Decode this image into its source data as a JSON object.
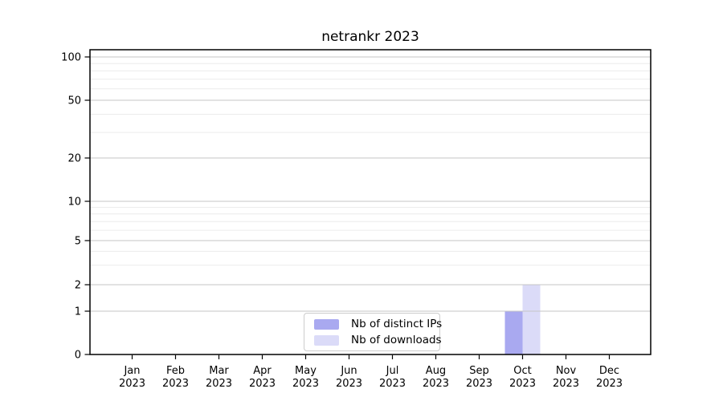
{
  "title": "netrankr 2023",
  "chart_data": {
    "type": "bar",
    "title": "netrankr 2023",
    "x_categories": [
      "Jan",
      "Feb",
      "Mar",
      "Apr",
      "May",
      "Jun",
      "Jul",
      "Aug",
      "Sep",
      "Oct",
      "Nov",
      "Dec"
    ],
    "x_year_label": "2023",
    "series": [
      {
        "name": "Nb of distinct IPs",
        "color": "#a9a9f0",
        "values": [
          0,
          0,
          0,
          0,
          0,
          0,
          0,
          0,
          0,
          1,
          0,
          0
        ]
      },
      {
        "name": "Nb of downloads",
        "color": "#dbdbf8",
        "values": [
          0,
          0,
          0,
          0,
          0,
          0,
          0,
          0,
          0,
          2,
          0,
          0
        ]
      }
    ],
    "y_axis": {
      "scale": "symlog",
      "major_ticks": [
        0,
        1,
        2,
        5,
        10,
        20,
        50,
        100
      ],
      "minor_ticks": [
        3,
        4,
        6,
        7,
        8,
        9,
        30,
        40,
        60,
        70,
        80,
        90
      ],
      "range": [
        0,
        110
      ]
    },
    "legend": {
      "position": "bottom-center",
      "entries": [
        "Nb of distinct IPs",
        "Nb of downloads"
      ]
    },
    "grid": {
      "major_color": "#c6c6c6",
      "minor_color": "#ececec"
    },
    "colors": {
      "spine": "#000000",
      "background": "#ffffff"
    }
  }
}
